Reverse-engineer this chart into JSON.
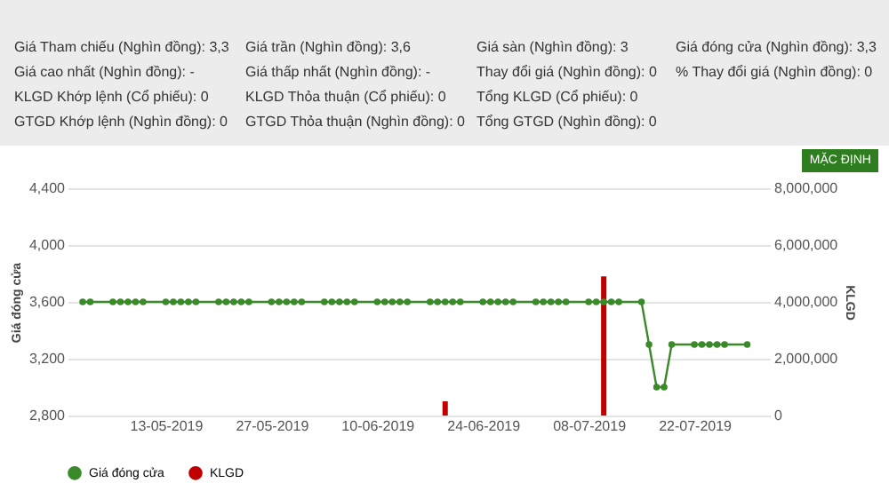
{
  "chart_data": {
    "type": "line",
    "ylabel": "Giá đóng cửa",
    "y2label": "KLGD",
    "annotations": [
      "Giá Tham chiếu (Nghìn đồng): 3,3",
      "Giá cao nhất (Nghìn đồng): -",
      "KLGD Khớp lệnh (Cổ phiếu): 0",
      "GTGD Khớp lệnh (Nghìn đồng): 0",
      "Giá trần (Nghìn đồng): 3,6",
      "Giá thấp nhất (Nghìn đồng): -",
      "KLGD Thỏa thuận (Cổ phiếu): 0",
      "GTGD Thỏa thuận (Nghìn đồng): 0",
      "Giá sàn (Nghìn đồng): 3",
      "Thay đổi giá (Nghìn đồng): 0",
      "Tổng KLGD (Cổ phiếu): 0",
      "Tổng GTGD (Nghìn đồng): 0",
      "Giá đóng cửa (Nghìn đồng): 3,3",
      "% Thay đổi giá (Nghìn đồng): 0",
      "MẶC ĐỊNH"
    ],
    "xlim": [
      "2019-04-30",
      "2019-08-01"
    ],
    "xticks": [
      {
        "value": "2019-05-13",
        "label": "13-05-2019"
      },
      {
        "value": "2019-05-27",
        "label": "27-05-2019"
      },
      {
        "value": "2019-06-10",
        "label": "10-06-2019"
      },
      {
        "value": "2019-06-24",
        "label": "24-06-2019"
      },
      {
        "value": "2019-07-08",
        "label": "08-07-2019"
      },
      {
        "value": "2019-07-22",
        "label": "22-07-2019"
      }
    ],
    "ylim": [
      2800,
      4400
    ],
    "yticks": [
      {
        "value": 2800,
        "label": "2,800"
      },
      {
        "value": 3200,
        "label": "3,200"
      },
      {
        "value": 3600,
        "label": "3,600"
      },
      {
        "value": 4000,
        "label": "4,000"
      },
      {
        "value": 4400,
        "label": "4,400"
      }
    ],
    "y2lim": [
      0,
      8000000
    ],
    "y2ticks": [
      {
        "value": 0,
        "label": "0"
      },
      {
        "value": 2000000,
        "label": "2,000,000"
      },
      {
        "value": 4000000,
        "label": "4,000,000"
      },
      {
        "value": 6000000,
        "label": "6,000,000"
      },
      {
        "value": 8000000,
        "label": "8,000,000"
      }
    ],
    "grid": "y",
    "legend": "bottom",
    "marker": "circle",
    "series": [
      {
        "name": "Giá đóng cửa",
        "color": "#3a8a2a",
        "x": [
          "2019-05-02",
          "2019-05-03",
          "2019-05-06",
          "2019-05-07",
          "2019-05-08",
          "2019-05-09",
          "2019-05-10",
          "2019-05-13",
          "2019-05-14",
          "2019-05-15",
          "2019-05-16",
          "2019-05-17",
          "2019-05-20",
          "2019-05-21",
          "2019-05-22",
          "2019-05-23",
          "2019-05-24",
          "2019-05-27",
          "2019-05-28",
          "2019-05-29",
          "2019-05-30",
          "2019-05-31",
          "2019-06-03",
          "2019-06-04",
          "2019-06-05",
          "2019-06-06",
          "2019-06-07",
          "2019-06-10",
          "2019-06-11",
          "2019-06-12",
          "2019-06-13",
          "2019-06-14",
          "2019-06-17",
          "2019-06-18",
          "2019-06-19",
          "2019-06-20",
          "2019-06-21",
          "2019-06-24",
          "2019-06-25",
          "2019-06-26",
          "2019-06-27",
          "2019-06-28",
          "2019-07-01",
          "2019-07-02",
          "2019-07-03",
          "2019-07-04",
          "2019-07-05",
          "2019-07-08",
          "2019-07-09",
          "2019-07-10",
          "2019-07-11",
          "2019-07-12",
          "2019-07-15",
          "2019-07-16",
          "2019-07-17",
          "2019-07-18",
          "2019-07-19",
          "2019-07-22",
          "2019-07-23",
          "2019-07-24",
          "2019-07-25",
          "2019-07-26",
          "2019-07-29"
        ],
        "values": [
          3600,
          3600,
          3600,
          3600,
          3600,
          3600,
          3600,
          3600,
          3600,
          3600,
          3600,
          3600,
          3600,
          3600,
          3600,
          3600,
          3600,
          3600,
          3600,
          3600,
          3600,
          3600,
          3600,
          3600,
          3600,
          3600,
          3600,
          3600,
          3600,
          3600,
          3600,
          3600,
          3600,
          3600,
          3600,
          3600,
          3600,
          3600,
          3600,
          3600,
          3600,
          3600,
          3600,
          3600,
          3600,
          3600,
          3600,
          3600,
          3600,
          3600,
          3600,
          3600,
          3600,
          3300,
          3000,
          3000,
          3300,
          3300,
          3300,
          3300,
          3300,
          3300,
          3300
        ]
      },
      {
        "name": "KLGD",
        "type": "bar",
        "axis": "y2",
        "color": "#c00000",
        "x": [
          "2019-06-19",
          "2019-07-10"
        ],
        "values": [
          500000,
          4900000
        ]
      }
    ]
  }
}
